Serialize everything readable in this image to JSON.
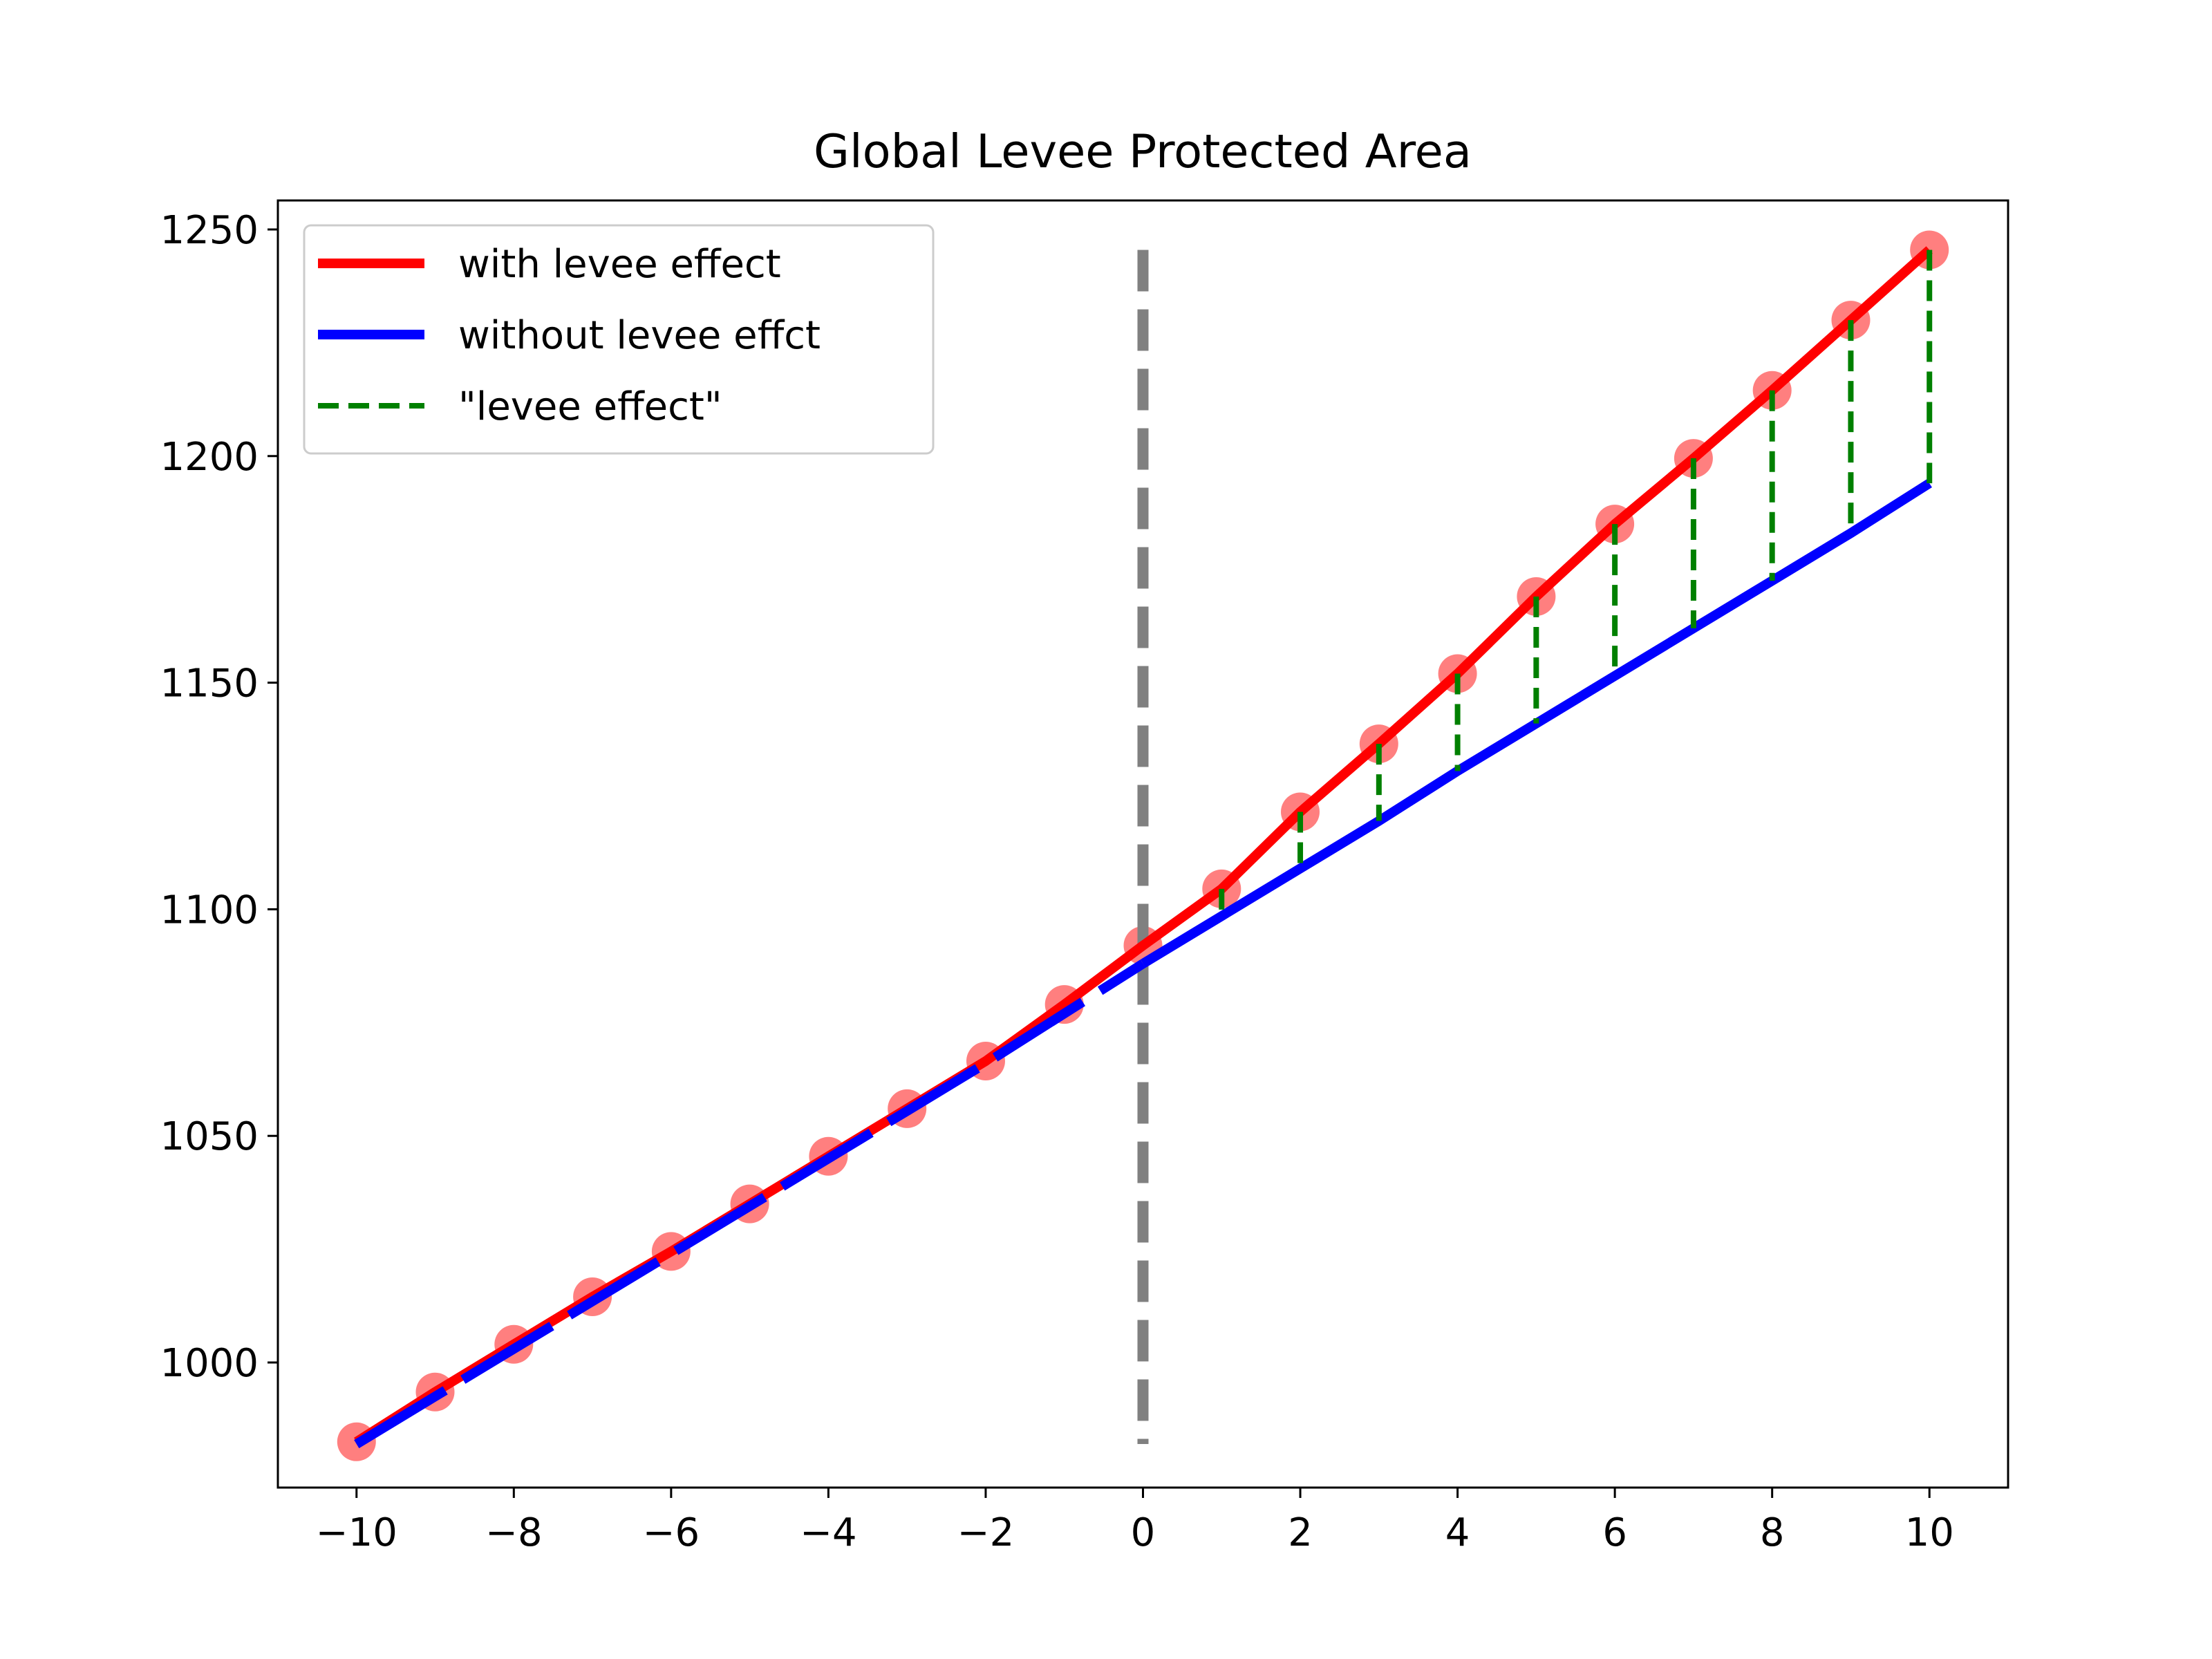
{
  "chart_data": {
    "type": "line",
    "title": "Global Levee Protected Area",
    "xlabel": "",
    "ylabel": "",
    "xlim": [
      -11,
      11
    ],
    "ylim": [
      972.4,
      1256.4
    ],
    "xticks": [
      -10,
      -8,
      -6,
      -4,
      -2,
      0,
      2,
      4,
      6,
      8,
      10
    ],
    "xtick_labels": [
      "−10",
      "−8",
      "−6",
      "−4",
      "−2",
      "0",
      "2",
      "4",
      "6",
      "8",
      "10"
    ],
    "yticks": [
      1000,
      1050,
      1100,
      1150,
      1200,
      1250
    ],
    "ytick_labels": [
      "1000",
      "1050",
      "1100",
      "1150",
      "1200",
      "1250"
    ],
    "grid": false,
    "legend_position": "upper-left",
    "x": [
      -10,
      -9,
      -8,
      -7,
      -6,
      -5,
      -4,
      -3,
      -2,
      -1,
      0,
      1,
      2,
      3,
      4,
      5,
      6,
      7,
      8,
      9,
      10
    ],
    "series": [
      {
        "name": "with levee effect",
        "color": "#ff0000",
        "style": "solid",
        "values": [
          982.5,
          993.5,
          1004.0,
          1014.5,
          1024.5,
          1035.0,
          1045.5,
          1056.0,
          1066.5,
          1079.0,
          1092.0,
          1104.5,
          1121.5,
          1136.5,
          1152.0,
          1169.0,
          1185.0,
          1199.5,
          1214.5,
          1230.0,
          1245.5
        ]
      },
      {
        "name": "without levee effct",
        "color": "#0000ff",
        "style": "solid",
        "values": [
          982.0,
          992.5,
          1003.0,
          1013.5,
          1024.0,
          1034.5,
          1045.0,
          1055.5,
          1066.0,
          1077.0,
          1088.0,
          1098.5,
          1109.0,
          1119.5,
          1130.5,
          1141.0,
          1151.5,
          1162.0,
          1172.5,
          1183.0,
          1194.0
        ]
      }
    ],
    "levee_effect": {
      "name": "\"levee effect\"",
      "color": "#008000",
      "style": "dashed",
      "x": [
        1,
        2,
        3,
        4,
        5,
        6,
        7,
        8,
        9,
        10
      ]
    },
    "markers": {
      "color": "#ff0000",
      "alpha": 0.5,
      "on_series": "with levee effect"
    },
    "reference_line": {
      "x": 0,
      "y_range": [
        982.0,
        1245.5
      ],
      "color": "#808080",
      "style": "dashed"
    }
  }
}
